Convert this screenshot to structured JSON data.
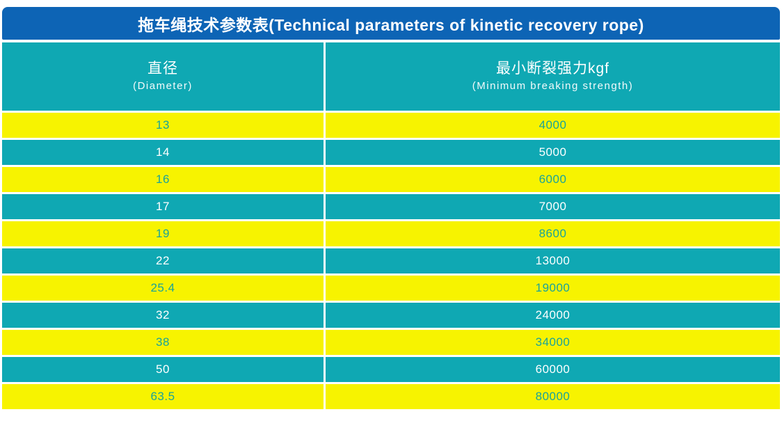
{
  "page": {
    "title": "拖车绳技术参数表(Technical parameters of kinetic recovery rope)"
  },
  "table": {
    "columns": [
      {
        "label_zh": "直径",
        "label_en": "(Diameter)"
      },
      {
        "label_zh": "最小断裂强力kgf",
        "label_en": "(Minimum breaking strength)"
      }
    ],
    "rows": [
      {
        "diameter": "13",
        "strength": "4000"
      },
      {
        "diameter": "14",
        "strength": "5000"
      },
      {
        "diameter": "16",
        "strength": "6000"
      },
      {
        "diameter": "17",
        "strength": "7000"
      },
      {
        "diameter": "19",
        "strength": "8600"
      },
      {
        "diameter": "22",
        "strength": "13000"
      },
      {
        "diameter": "25.4",
        "strength": "19000"
      },
      {
        "diameter": "32",
        "strength": "24000"
      },
      {
        "diameter": "38",
        "strength": "34000"
      },
      {
        "diameter": "50",
        "strength": "60000"
      },
      {
        "diameter": "63.5",
        "strength": "80000"
      }
    ]
  },
  "colors": {
    "title_bar_blue": "#0d64b5",
    "row_teal": "#0fa8b3",
    "row_yellow": "#f7f300",
    "text_on_yellow": "#19a39b",
    "text_on_teal": "#ffffff",
    "title_text": "#ffffff"
  }
}
